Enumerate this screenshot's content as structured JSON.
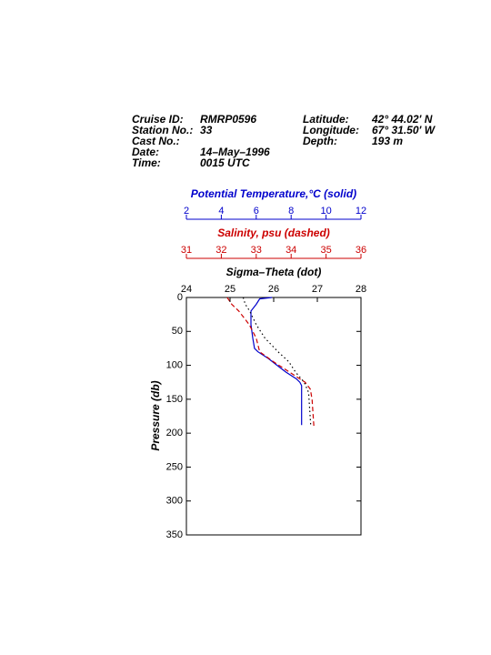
{
  "header": {
    "left": [
      [
        "Cruise ID:",
        "RMRP0596"
      ],
      [
        "Station No.:",
        "33"
      ],
      [
        "Cast No.:"
      ],
      [
        "Date:",
        "14–May–1996"
      ],
      [
        "Time:",
        "0015 UTC"
      ]
    ],
    "right": [
      [
        "Latitude:",
        "42° 44.02' N"
      ],
      [
        "Longitude:",
        "67° 31.50' W"
      ],
      [
        "Depth:",
        "193 m"
      ]
    ]
  },
  "chart_data": [
    {
      "type": "line",
      "title": "Potential Temperature,°C (solid)",
      "color": "#0000cc",
      "dash": "solid",
      "xlim": [
        2,
        12
      ],
      "xticks": [
        2,
        4,
        6,
        8,
        10,
        12
      ],
      "ylabel": "Pressure (db)",
      "ylim": [
        0,
        350
      ],
      "yticks": [
        0,
        50,
        100,
        150,
        200,
        250,
        300,
        350
      ],
      "y": [
        0,
        2,
        10,
        20,
        40,
        60,
        75,
        80,
        90,
        100,
        110,
        120,
        125,
        130,
        188
      ],
      "x": [
        6.9,
        6.2,
        6.0,
        5.7,
        5.7,
        5.8,
        5.9,
        6.1,
        6.7,
        7.2,
        7.7,
        8.3,
        8.5,
        8.6,
        8.6
      ]
    },
    {
      "type": "line",
      "title": "Salinity, psu  (dashed)",
      "color": "#cc0000",
      "dash": "dashed",
      "xlim": [
        31,
        36
      ],
      "xticks": [
        31,
        32,
        33,
        34,
        35,
        36
      ],
      "ylim": [
        0,
        350
      ],
      "y": [
        0,
        10,
        20,
        40,
        60,
        80,
        95,
        110,
        125,
        135,
        150,
        190
      ],
      "x": [
        32.17,
        32.3,
        32.5,
        32.8,
        33.0,
        33.1,
        33.5,
        33.95,
        34.4,
        34.55,
        34.6,
        34.65
      ]
    },
    {
      "type": "line",
      "title": "Sigma–Theta (dot)",
      "color": "#000000",
      "dash": "dotted",
      "xlim": [
        24,
        28
      ],
      "xticks": [
        24,
        25,
        26,
        27,
        28
      ],
      "ylim": [
        0,
        350
      ],
      "y": [
        0,
        10,
        20,
        40,
        60,
        80,
        95,
        110,
        125,
        140,
        190
      ],
      "x": [
        25.3,
        25.35,
        25.45,
        25.6,
        25.8,
        26.1,
        26.35,
        26.5,
        26.7,
        26.8,
        26.85
      ]
    }
  ]
}
